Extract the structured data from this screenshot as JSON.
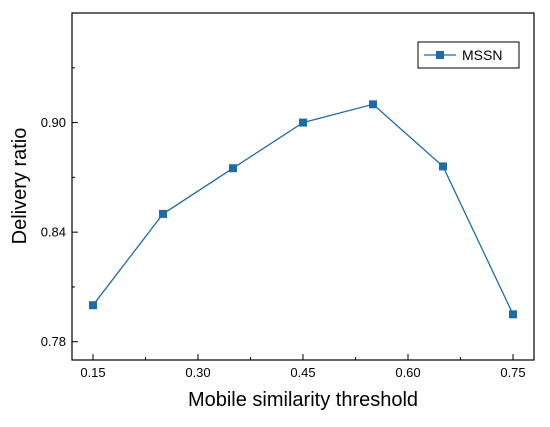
{
  "chart_data": {
    "type": "line",
    "title": "",
    "xlabel": "Mobile similarity threshold",
    "ylabel": "Delivery ratio",
    "xlim": [
      0.12,
      0.78
    ],
    "ylim": [
      0.77,
      0.96
    ],
    "xticks": [
      0.15,
      0.3,
      0.45,
      0.6,
      0.75
    ],
    "xtick_labels": [
      "0.15",
      "0.30",
      "0.45",
      "0.60",
      "0.75"
    ],
    "yticks": [
      0.78,
      0.84,
      0.9
    ],
    "ytick_labels": [
      "0.78",
      "0.84",
      "0.90"
    ],
    "grid": false,
    "legend_position": "top-right",
    "series": [
      {
        "name": "MSSN",
        "color": "#1f6ba5",
        "marker": "square",
        "x": [
          0.15,
          0.25,
          0.35,
          0.45,
          0.55,
          0.65,
          0.75
        ],
        "y": [
          0.8,
          0.85,
          0.875,
          0.9,
          0.91,
          0.876,
          0.795
        ]
      }
    ]
  }
}
